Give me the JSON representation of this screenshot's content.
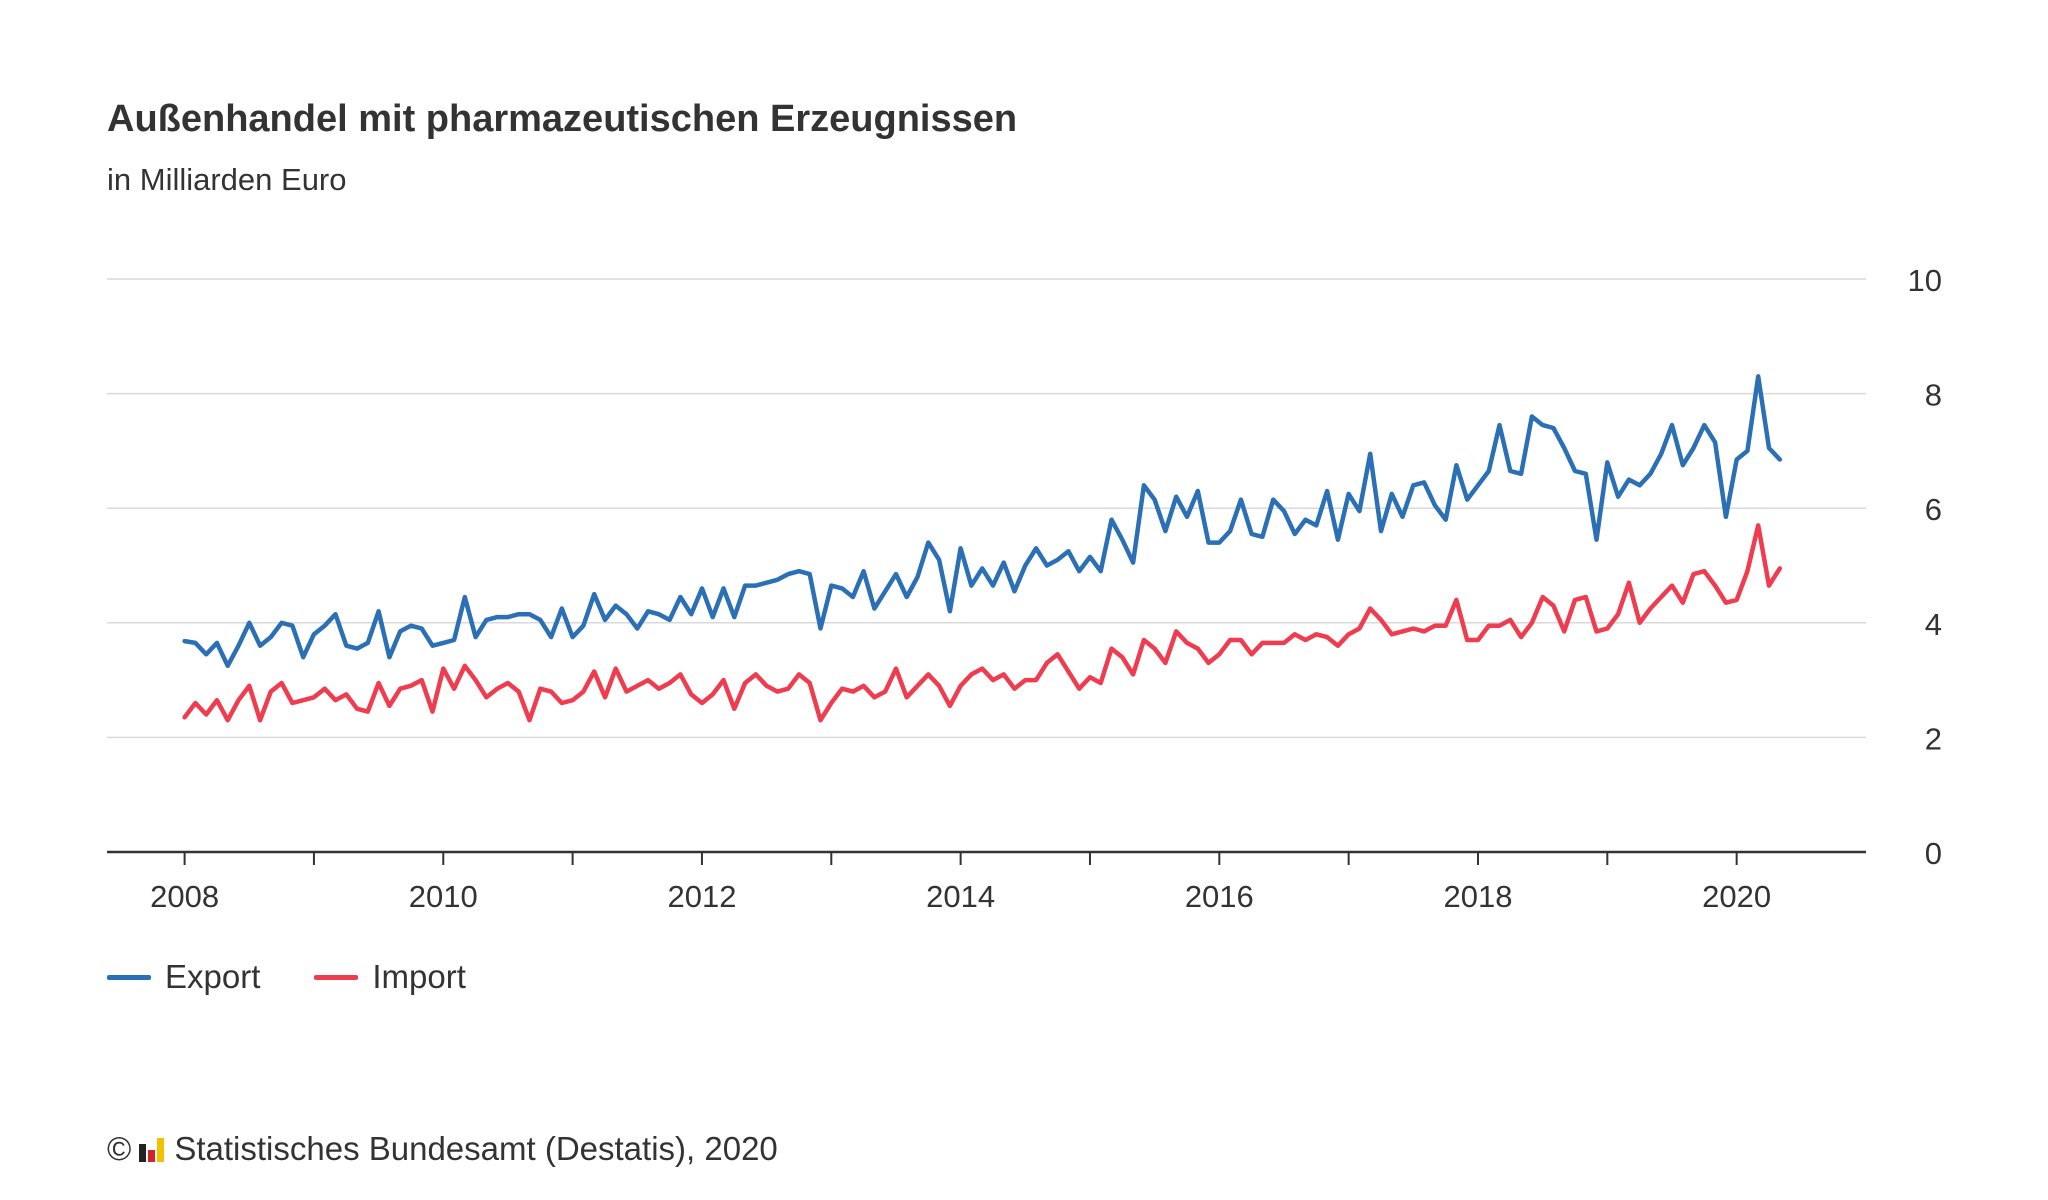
{
  "title": "Außenhandel mit pharmazeutischen Erzeugnissen",
  "subtitle": "in Milliarden Euro",
  "footer": {
    "copyright": "©",
    "source": "Statistisches Bundesamt (Destatis), 2020"
  },
  "chart_data": {
    "type": "line",
    "title": "Außenhandel mit pharmazeutischen Erzeugnissen",
    "subtitle": "in Milliarden Euro",
    "xlabel": "",
    "ylabel": "",
    "xlim": [
      2007.4,
      2021.0
    ],
    "ylim": [
      0,
      10
    ],
    "y_ticks": [
      0,
      2,
      4,
      6,
      8,
      10
    ],
    "x_tick_labels": [
      "2008",
      "2010",
      "2012",
      "2014",
      "2016",
      "2018",
      "2020"
    ],
    "x_ticks_years": [
      2008,
      2009,
      2010,
      2011,
      2012,
      2013,
      2014,
      2015,
      2016,
      2017,
      2018,
      2019,
      2020
    ],
    "y_axis_position": "right",
    "grid": true,
    "legend_position": "bottom-left",
    "x_start": "2008-01",
    "x_step": "month",
    "series": [
      {
        "name": "Export",
        "color": "#2b6fb5",
        "values": [
          3.68,
          3.65,
          3.45,
          3.65,
          3.25,
          3.6,
          4.0,
          3.6,
          3.75,
          4.0,
          3.95,
          3.4,
          3.8,
          3.95,
          4.15,
          3.6,
          3.55,
          3.65,
          4.2,
          3.4,
          3.85,
          3.95,
          3.9,
          3.6,
          3.65,
          3.7,
          4.45,
          3.75,
          4.05,
          4.1,
          4.1,
          4.15,
          4.15,
          4.05,
          3.75,
          4.25,
          3.75,
          3.95,
          4.5,
          4.05,
          4.3,
          4.15,
          3.9,
          4.2,
          4.15,
          4.05,
          4.45,
          4.15,
          4.6,
          4.1,
          4.6,
          4.1,
          4.65,
          4.65,
          4.7,
          4.75,
          4.85,
          4.9,
          4.85,
          3.9,
          4.65,
          4.6,
          4.45,
          4.9,
          4.25,
          4.55,
          4.85,
          4.45,
          4.8,
          5.4,
          5.1,
          4.2,
          5.3,
          4.65,
          4.95,
          4.65,
          5.05,
          4.55,
          5.0,
          5.3,
          5.0,
          5.1,
          5.25,
          4.9,
          5.15,
          4.9,
          5.8,
          5.45,
          5.05,
          6.4,
          6.15,
          5.6,
          6.2,
          5.85,
          6.3,
          5.4,
          5.4,
          5.6,
          6.15,
          5.55,
          5.5,
          6.15,
          5.95,
          5.55,
          5.8,
          5.7,
          6.3,
          5.45,
          6.25,
          5.95,
          6.95,
          5.6,
          6.25,
          5.85,
          6.4,
          6.45,
          6.05,
          5.8,
          6.75,
          6.15,
          6.4,
          6.65,
          7.45,
          6.65,
          6.6,
          7.6,
          7.45,
          7.4,
          7.05,
          6.65,
          6.6,
          5.45,
          6.8,
          6.2,
          6.5,
          6.4,
          6.6,
          6.95,
          7.45,
          6.75,
          7.05,
          7.45,
          7.15,
          5.85,
          6.85,
          7.0,
          8.3,
          7.05,
          6.85
        ]
      },
      {
        "name": "Import",
        "color": "#ef3c4f",
        "values": [
          2.35,
          2.6,
          2.4,
          2.65,
          2.3,
          2.65,
          2.9,
          2.3,
          2.8,
          2.95,
          2.6,
          2.65,
          2.7,
          2.85,
          2.65,
          2.75,
          2.5,
          2.45,
          2.95,
          2.55,
          2.85,
          2.9,
          3.0,
          2.45,
          3.2,
          2.85,
          3.25,
          3.0,
          2.7,
          2.85,
          2.95,
          2.8,
          2.3,
          2.85,
          2.8,
          2.6,
          2.65,
          2.8,
          3.15,
          2.7,
          3.2,
          2.8,
          2.9,
          3.0,
          2.85,
          2.95,
          3.1,
          2.75,
          2.6,
          2.75,
          3.0,
          2.5,
          2.95,
          3.1,
          2.9,
          2.8,
          2.85,
          3.1,
          2.95,
          2.3,
          2.6,
          2.85,
          2.8,
          2.9,
          2.7,
          2.8,
          3.2,
          2.7,
          2.9,
          3.1,
          2.9,
          2.55,
          2.9,
          3.1,
          3.2,
          3.0,
          3.1,
          2.85,
          3.0,
          3.0,
          3.3,
          3.45,
          3.15,
          2.85,
          3.05,
          2.95,
          3.55,
          3.4,
          3.1,
          3.7,
          3.55,
          3.3,
          3.85,
          3.65,
          3.55,
          3.3,
          3.45,
          3.7,
          3.7,
          3.45,
          3.65,
          3.65,
          3.65,
          3.8,
          3.7,
          3.8,
          3.75,
          3.6,
          3.8,
          3.9,
          4.25,
          4.05,
          3.8,
          3.85,
          3.9,
          3.85,
          3.95,
          3.95,
          4.4,
          3.7,
          3.7,
          3.95,
          3.95,
          4.05,
          3.75,
          4.0,
          4.45,
          4.3,
          3.85,
          4.4,
          4.45,
          3.85,
          3.9,
          4.15,
          4.7,
          4.0,
          4.25,
          4.45,
          4.65,
          4.35,
          4.85,
          4.9,
          4.65,
          4.35,
          4.4,
          4.9,
          5.7,
          4.65,
          4.95
        ]
      }
    ]
  }
}
